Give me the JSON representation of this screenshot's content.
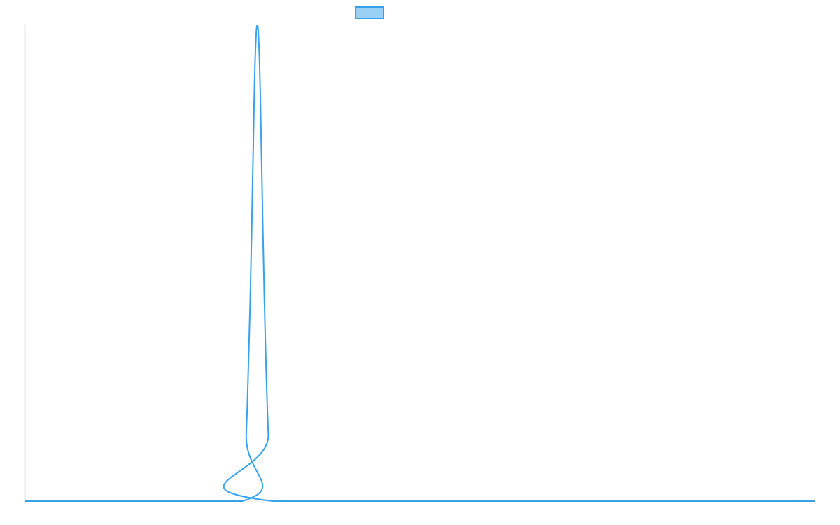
{
  "chart_data": {
    "type": "line",
    "title": "",
    "xlabel": "",
    "ylabel": "",
    "grid": false,
    "legend": {
      "placement": "top-center",
      "entries": [
        {
          "label": ""
        }
      ]
    },
    "xlim": [
      0,
      100
    ],
    "ylim": [
      0,
      1
    ],
    "series": [
      {
        "color": "#36a2eb",
        "fill_color": "#9ad0f5",
        "points": [
          {
            "x": 0,
            "y": 0
          },
          {
            "x": 27.5,
            "y": 0
          },
          {
            "x": 28.0,
            "y": 0.14
          },
          {
            "x": 28.5,
            "y": 0.42
          },
          {
            "x": 29.0,
            "y": 0.84
          },
          {
            "x": 29.2,
            "y": 0.96
          },
          {
            "x": 29.4,
            "y": 1.0
          },
          {
            "x": 29.6,
            "y": 0.96
          },
          {
            "x": 29.8,
            "y": 0.84
          },
          {
            "x": 30.3,
            "y": 0.42
          },
          {
            "x": 30.8,
            "y": 0.14
          },
          {
            "x": 31.4,
            "y": 0
          },
          {
            "x": 100,
            "y": 0
          }
        ]
      }
    ]
  }
}
